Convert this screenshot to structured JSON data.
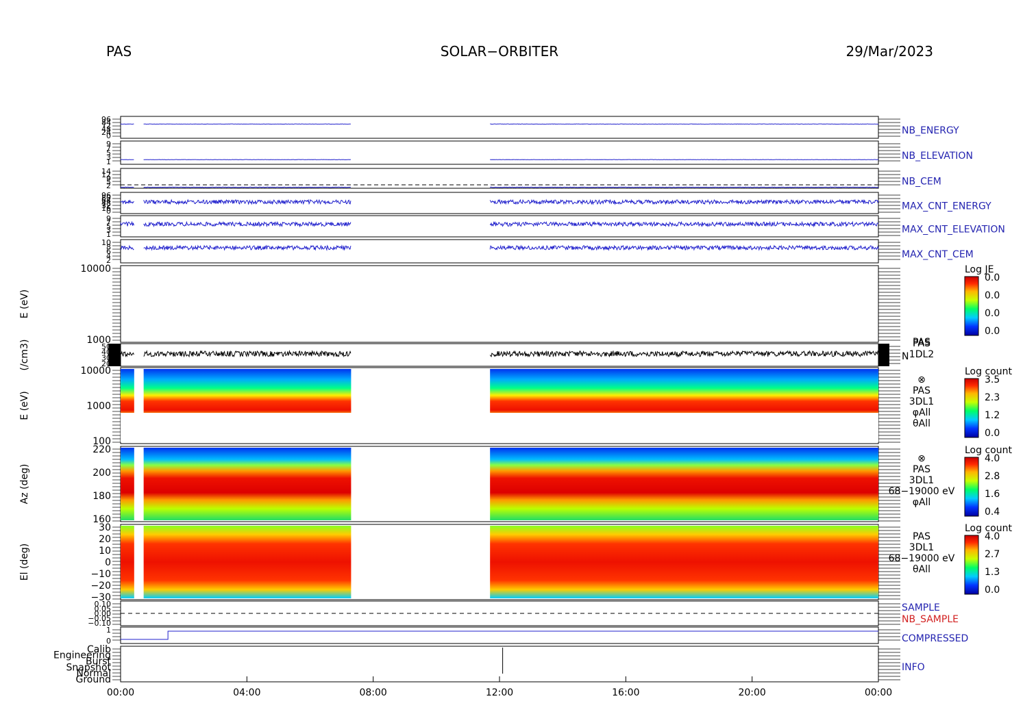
{
  "header": {
    "left": "PAS",
    "center": "SOLAR−ORBITER",
    "right": "29/Mar/2023"
  },
  "time_axis": {
    "ticks": [
      "00:00",
      "04:00",
      "08:00",
      "12:00",
      "16:00",
      "20:00",
      "00:00"
    ],
    "range_hours": [
      0,
      24
    ]
  },
  "data_gaps_hours": [
    [
      0.43,
      0.73
    ],
    [
      7.3,
      11.7
    ]
  ],
  "colors": {
    "line_blue": "#1f1fcc",
    "label_blue": "#2323b0",
    "label_red": "#d22020",
    "axis": "#000000"
  },
  "chart_data": [
    {
      "type": "line",
      "name": "NB_ENERGY",
      "label": "NB_ENERGY",
      "yticks": [
        "96",
        "84",
        "72",
        "48",
        "24",
        "0"
      ],
      "level": 0.35
    },
    {
      "type": "line",
      "name": "NB_ELEVATION",
      "label": "NB_ELEVATION",
      "yticks": [
        "9",
        "7",
        "5",
        "3",
        "1"
      ],
      "level": 0.8
    },
    {
      "type": "line",
      "name": "NB_CEM",
      "label": "NB_CEM",
      "yticks": [
        "14",
        "12",
        "9",
        "5",
        "2"
      ],
      "level": 0.95
    },
    {
      "type": "line",
      "name": "MAX_CNT_ENERGY",
      "label": "MAX_CNT_ENERGY",
      "yticks": [
        "96",
        "80",
        "64",
        "48",
        "32",
        "16",
        "0"
      ],
      "level": 0.45
    },
    {
      "type": "line",
      "name": "MAX_CNT_ELEVATION",
      "label": "MAX_CNT_ELEVATION",
      "yticks": [
        "9",
        "7",
        "5",
        "3",
        "1"
      ],
      "level": 0.4
    },
    {
      "type": "line",
      "name": "MAX_CNT_CEM",
      "label": "MAX_CNT_CEM",
      "yticks": [
        "10",
        "8",
        "6",
        "4",
        "2"
      ],
      "level": 0.35
    },
    {
      "type": "heatmap",
      "name": "PAS 1DL2",
      "ylabel": "E (eV)",
      "yticks": [
        "10000",
        "1000"
      ],
      "colorbar": {
        "title": "Log JE",
        "ticks": [
          "0.0",
          "0.0",
          "0.0",
          "0.0"
        ]
      }
    },
    {
      "type": "line",
      "name": "N",
      "ylabel": "(/cm3)",
      "yticks": [
        "50",
        "40",
        "30",
        "20"
      ],
      "labels": [
        "PAS",
        "1DL2",
        "N"
      ],
      "mean": 28
    },
    {
      "type": "heatmap",
      "name": "PAS 3DL1 energy",
      "ylabel": "E (eV)",
      "yticks": [
        "10000",
        "1000",
        "100"
      ],
      "labels": [
        "⊗",
        "PAS",
        "3DL1",
        "φAll",
        "θAll"
      ],
      "colorbar": {
        "title": "Log count",
        "ticks": [
          "3.5",
          "2.3",
          "1.2",
          "0.0"
        ]
      }
    },
    {
      "type": "heatmap",
      "name": "PAS 3DL1 azimuth",
      "ylabel": "Az (deg)",
      "yticks": [
        "220",
        "200",
        "180",
        "160"
      ],
      "labels": [
        "⊗",
        "PAS",
        "3DL1",
        "68−19000 eV",
        "φAll"
      ],
      "colorbar": {
        "title": "Log count",
        "ticks": [
          "4.0",
          "2.8",
          "1.6",
          "0.4"
        ]
      }
    },
    {
      "type": "heatmap",
      "name": "PAS 3DL1 elevation",
      "ylabel": "El (deg)",
      "yticks": [
        "30",
        "20",
        "10",
        "0",
        "−10",
        "−20",
        "−30"
      ],
      "labels": [
        "PAS",
        "3DL1",
        "68−19000 eV",
        "θAll"
      ],
      "colorbar": {
        "title": "Log count",
        "ticks": [
          "4.0",
          "2.7",
          "1.3",
          "0.0"
        ]
      }
    },
    {
      "type": "line",
      "name": "SAMPLE",
      "yticks": [
        "0.10",
        "0.05",
        "0.00",
        "−0.05",
        "−0.10"
      ],
      "labels": [
        "SAMPLE",
        "NB_SAMPLE"
      ]
    },
    {
      "type": "line",
      "name": "COMPRESSED",
      "label": "COMPRESSED",
      "yticks": [
        "1",
        "0"
      ]
    },
    {
      "type": "line",
      "name": "INFO",
      "label": "INFO",
      "yticks": [
        "Calib",
        "Engineering",
        "Burst",
        "Snapshot",
        "Normal",
        "Ground"
      ]
    }
  ]
}
